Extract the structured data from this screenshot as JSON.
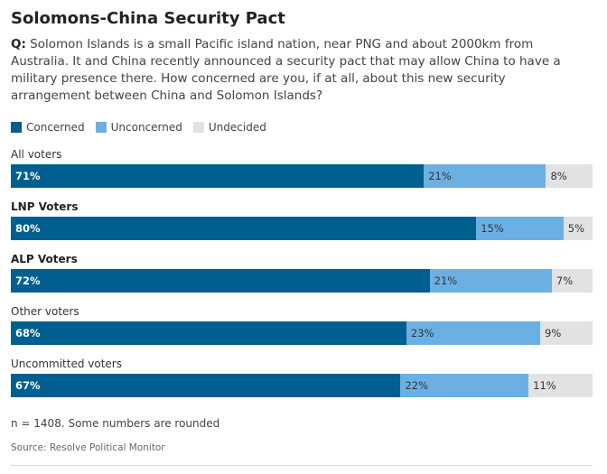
{
  "title": "Solomons-China Security Pact",
  "question": {
    "prefix": "Q:",
    "text": "Solomon Islands is a small Pacific island nation, near PNG and about 2000km from Australia. It and China recently announced a security pact that may allow China to have a military presence there. How concerned are you, if at all, about this new security arrangement between China and Solomon Islands?"
  },
  "colors": {
    "concerned": "#005f8f",
    "unconcerned": "#6cb0e3",
    "undecided": "#e2e2e2"
  },
  "note": "n = 1408. Some numbers are rounded",
  "source": "Source: Resolve Political Monitor",
  "chart_data": {
    "type": "bar",
    "orientation": "horizontal",
    "stacked": true,
    "normalized": true,
    "title": "Solomons-China Security Pact",
    "legend": [
      "Concerned",
      "Unconcerned",
      "Undecided"
    ],
    "legend_position": "top-left",
    "categories": [
      "All voters",
      "LNP Voters",
      "ALP Voters",
      "Other voters",
      "Uncommitted voters"
    ],
    "bold_categories": [
      false,
      true,
      true,
      false,
      false
    ],
    "series": [
      {
        "name": "Concerned",
        "key": "concerned",
        "values": [
          71,
          80,
          72,
          68,
          67
        ],
        "labels": [
          "71%",
          "80%",
          "72%",
          "68%",
          "67%"
        ]
      },
      {
        "name": "Unconcerned",
        "key": "unconcerned",
        "values": [
          21,
          15,
          21,
          23,
          22
        ],
        "labels": [
          "21%",
          "15%",
          "21%",
          "23%",
          "22%"
        ]
      },
      {
        "name": "Undecided",
        "key": "undecided",
        "values": [
          8,
          5,
          7,
          9,
          11
        ],
        "labels": [
          "8%",
          "5%",
          "7%",
          "9%",
          "11%"
        ]
      }
    ],
    "xlim": [
      0,
      100
    ]
  }
}
